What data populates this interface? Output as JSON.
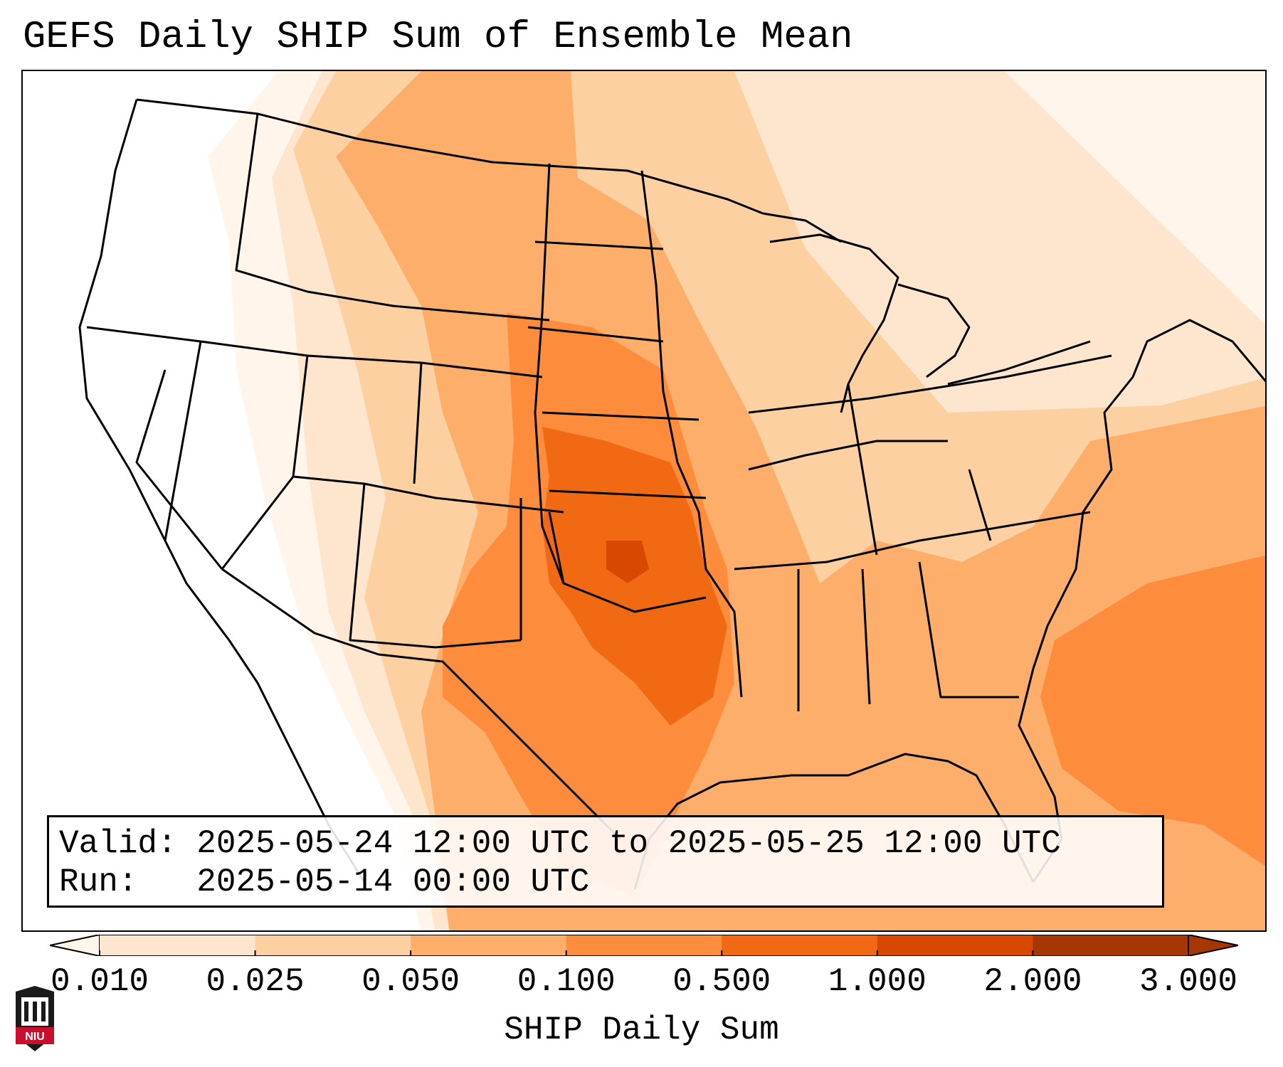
{
  "title": "GEFS Daily SHIP Sum of Ensemble Mean",
  "info": {
    "valid_label": "Valid:",
    "valid_value": "2025-05-24 12:00 UTC to 2025-05-25 12:00 UTC",
    "run_label": "Run:",
    "run_value": "2025-05-14 00:00 UTC"
  },
  "colorbar": {
    "label": "SHIP Daily Sum",
    "ticks": [
      "0.010",
      "0.025",
      "0.050",
      "0.100",
      "0.500",
      "1.000",
      "2.000",
      "3.000"
    ],
    "colors": [
      "#fff5eb",
      "#fee6ce",
      "#fdd0a2",
      "#fdae6b",
      "#fd8d3c",
      "#f16913",
      "#d94801",
      "#a63603"
    ],
    "extend": "both"
  },
  "logo": {
    "text": "NIU",
    "colors": {
      "red": "#c8102e",
      "black": "#1a1a1a"
    }
  },
  "map": {
    "region": "CONUS",
    "field": "SHIP Daily Sum",
    "shading_max_area": "Kansas / Oklahoma"
  }
}
